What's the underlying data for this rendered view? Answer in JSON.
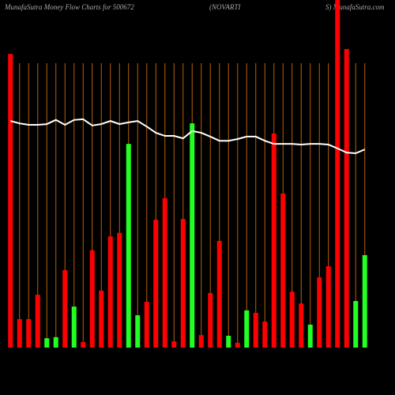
{
  "chart_data": {
    "type": "bar",
    "title": "MunafaSutra  Money Flow  Charts for 500672",
    "title_parts": [
      "(NOVARTI",
      "S) MunafaSutra.com"
    ],
    "categories": [
      null,
      null,
      null,
      null,
      null,
      null,
      null,
      null,
      null,
      null,
      null,
      null,
      null,
      null,
      null,
      null,
      null,
      null,
      null,
      null,
      null,
      null,
      null,
      null,
      null,
      null,
      null,
      null,
      null,
      null,
      null,
      null,
      null,
      null,
      null,
      null,
      null,
      null,
      null,
      null
    ],
    "values": [
      84.5,
      8.2,
      8.2,
      15.2,
      2.7,
      3.0,
      22.3,
      11.8,
      1.6,
      28.0,
      16.4,
      32.0,
      33.0,
      58.6,
      9.3,
      13.2,
      36.8,
      43.0,
      1.8,
      37.0,
      64.5,
      3.6,
      15.7,
      30.7,
      3.4,
      1.4,
      10.7,
      10.0,
      7.5,
      61.6,
      44.3,
      16.1,
      12.7,
      6.6,
      20.2,
      23.4,
      100,
      85.9,
      13.4,
      26.6
    ],
    "colors": [
      "#f00",
      "#f00",
      "#f00",
      "#f00",
      "#2f2",
      "#2f2",
      "#f00",
      "#2f2",
      "#f00",
      "#f00",
      "#f00",
      "#f00",
      "#f00",
      "#2f2",
      "#2f2",
      "#f00",
      "#f00",
      "#f00",
      "#f00",
      "#f00",
      "#2f2",
      "#f00",
      "#f00",
      "#f00",
      "#2f2",
      "#f00",
      "#2f2",
      "#f00",
      "#f00",
      "#f00",
      "#f00",
      "#f00",
      "#f00",
      "#2f2",
      "#f00",
      "#f00",
      "#f00",
      "#f00",
      "#2f2",
      "#2f2"
    ],
    "line": {
      "color": "#fff",
      "values": [
        65.2,
        64.5,
        64.1,
        64.1,
        64.3,
        65.5,
        64.1,
        65.5,
        65.7,
        63.9,
        64.3,
        65.2,
        64.3,
        64.8,
        65.2,
        63.6,
        61.8,
        60.9,
        60.9,
        60.2,
        62.3,
        61.8,
        60.7,
        59.5,
        59.5,
        60.0,
        60.7,
        60.7,
        59.5,
        58.6,
        58.6,
        58.6,
        58.4,
        58.6,
        58.6,
        58.4,
        57.3,
        56.1,
        55.9,
        57.0
      ]
    },
    "ylim": [
      0,
      100
    ],
    "grid": true,
    "grid_color": "#b8600c"
  }
}
